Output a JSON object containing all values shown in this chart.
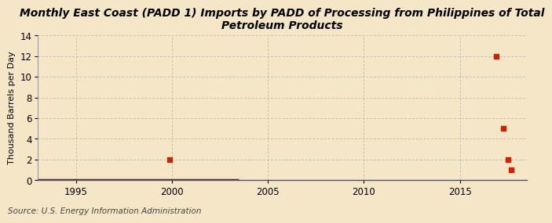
{
  "title": "Monthly East Coast (PADD 1) Imports by PADD of Processing from Philippines of Total\nPetroleum Products",
  "ylabel": "Thousand Barrels per Day",
  "source": "Source: U.S. Energy Information Administration",
  "background_color": "#f5e6c8",
  "plot_background_color": "#f5e6c8",
  "xlim": [
    1993,
    2018.5
  ],
  "ylim": [
    0,
    14
  ],
  "yticks": [
    0,
    2,
    4,
    6,
    8,
    10,
    12,
    14
  ],
  "xticks": [
    1995,
    2000,
    2005,
    2010,
    2015
  ],
  "line_color": "#8b1a1a",
  "marker_color": "#cc2200",
  "line_start": 1993.0,
  "line_end": 2003.5,
  "line_y": 0.0,
  "scatter_x": [
    1999.9,
    2016.9,
    2017.25,
    2017.5,
    2017.65
  ],
  "scatter_y": [
    2.0,
    12.0,
    5.0,
    2.0,
    1.0
  ],
  "title_fontsize": 10,
  "axis_fontsize": 8,
  "tick_fontsize": 8.5,
  "source_fontsize": 7.5
}
